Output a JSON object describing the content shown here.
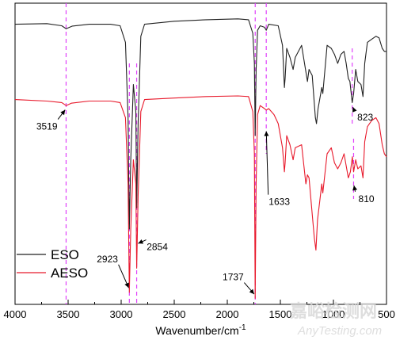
{
  "chart_data": {
    "type": "line",
    "xlabel": "Wavenumber/cm",
    "xlabel_sup": "-1",
    "ylabel": "",
    "xlim": [
      4000,
      500
    ],
    "x_reversed": true,
    "x_ticks": [
      4000,
      3500,
      3000,
      2500,
      2000,
      1500,
      1000,
      500
    ],
    "ylim": [
      0,
      100
    ],
    "grid": false,
    "legend_position": "bottom-left",
    "series": [
      {
        "name": "ESO",
        "color": "#222222",
        "points": [
          [
            4000,
            93
          ],
          [
            3700,
            93.2
          ],
          [
            3560,
            92.5
          ],
          [
            3519,
            91.5
          ],
          [
            3460,
            92.4
          ],
          [
            3300,
            93
          ],
          [
            3100,
            93
          ],
          [
            3010,
            92.5
          ],
          [
            2960,
            87
          ],
          [
            2935,
            62
          ],
          [
            2923,
            25
          ],
          [
            2910,
            48
          ],
          [
            2885,
            73
          ],
          [
            2862,
            64
          ],
          [
            2854,
            32
          ],
          [
            2840,
            60
          ],
          [
            2815,
            89
          ],
          [
            2780,
            93
          ],
          [
            2500,
            94
          ],
          [
            2200,
            94.5
          ],
          [
            1900,
            94.8
          ],
          [
            1800,
            94.5
          ],
          [
            1760,
            90
          ],
          [
            1745,
            80
          ],
          [
            1737,
            56
          ],
          [
            1728,
            78
          ],
          [
            1715,
            91
          ],
          [
            1690,
            92.5
          ],
          [
            1650,
            92
          ],
          [
            1633,
            91
          ],
          [
            1610,
            93
          ],
          [
            1520,
            92.5
          ],
          [
            1480,
            86
          ],
          [
            1462,
            72
          ],
          [
            1455,
            75
          ],
          [
            1440,
            85
          ],
          [
            1410,
            82
          ],
          [
            1380,
            78
          ],
          [
            1360,
            82
          ],
          [
            1300,
            86
          ],
          [
            1245,
            74
          ],
          [
            1230,
            78
          ],
          [
            1200,
            76
          ],
          [
            1170,
            62
          ],
          [
            1160,
            60
          ],
          [
            1145,
            65
          ],
          [
            1110,
            72
          ],
          [
            1100,
            70
          ],
          [
            1060,
            86
          ],
          [
            1020,
            85
          ],
          [
            990,
            83
          ],
          [
            960,
            80
          ],
          [
            930,
            83
          ],
          [
            900,
            84
          ],
          [
            880,
            80
          ],
          [
            860,
            75
          ],
          [
            845,
            74
          ],
          [
            823,
            67
          ],
          [
            810,
            70
          ],
          [
            790,
            78
          ],
          [
            770,
            74
          ],
          [
            740,
            73
          ],
          [
            722,
            69
          ],
          [
            705,
            80
          ],
          [
            680,
            87
          ],
          [
            640,
            88
          ],
          [
            600,
            89
          ],
          [
            570,
            88.5
          ],
          [
            540,
            85
          ],
          [
            520,
            84
          ],
          [
            500,
            84
          ]
        ]
      },
      {
        "name": "AESO",
        "color": "#e8192b",
        "points": [
          [
            4000,
            68
          ],
          [
            3700,
            67.5
          ],
          [
            3560,
            67
          ],
          [
            3519,
            66
          ],
          [
            3470,
            66.8
          ],
          [
            3300,
            67.5
          ],
          [
            3100,
            67.5
          ],
          [
            3010,
            67
          ],
          [
            2960,
            62
          ],
          [
            2935,
            40
          ],
          [
            2923,
            4
          ],
          [
            2910,
            25
          ],
          [
            2885,
            48
          ],
          [
            2862,
            40
          ],
          [
            2854,
            12
          ],
          [
            2840,
            36
          ],
          [
            2815,
            64
          ],
          [
            2780,
            68
          ],
          [
            2500,
            68.5
          ],
          [
            2200,
            69
          ],
          [
            1900,
            69.2
          ],
          [
            1800,
            69
          ],
          [
            1760,
            64
          ],
          [
            1745,
            50
          ],
          [
            1737,
            2
          ],
          [
            1728,
            40
          ],
          [
            1715,
            63
          ],
          [
            1690,
            66
          ],
          [
            1650,
            65
          ],
          [
            1633,
            64.5
          ],
          [
            1610,
            65
          ],
          [
            1560,
            63
          ],
          [
            1520,
            60
          ],
          [
            1480,
            52
          ],
          [
            1462,
            44
          ],
          [
            1455,
            47
          ],
          [
            1440,
            56
          ],
          [
            1410,
            53
          ],
          [
            1380,
            48
          ],
          [
            1360,
            52
          ],
          [
            1300,
            53
          ],
          [
            1260,
            40
          ],
          [
            1245,
            43
          ],
          [
            1230,
            42
          ],
          [
            1200,
            30
          ],
          [
            1180,
            22
          ],
          [
            1165,
            18
          ],
          [
            1150,
            28
          ],
          [
            1110,
            40
          ],
          [
            1100,
            37
          ],
          [
            1060,
            50
          ],
          [
            1020,
            52
          ],
          [
            990,
            47
          ],
          [
            960,
            45
          ],
          [
            930,
            47
          ],
          [
            900,
            50
          ],
          [
            880,
            46
          ],
          [
            860,
            42
          ],
          [
            840,
            44
          ],
          [
            822,
            49
          ],
          [
            810,
            44
          ],
          [
            790,
            48
          ],
          [
            770,
            45
          ],
          [
            740,
            46
          ],
          [
            722,
            42
          ],
          [
            705,
            54
          ],
          [
            680,
            59
          ],
          [
            640,
            61
          ],
          [
            600,
            62
          ],
          [
            570,
            60
          ],
          [
            540,
            53
          ],
          [
            520,
            50
          ],
          [
            500,
            49
          ]
        ]
      }
    ],
    "reference_lines": [
      {
        "x": 3519,
        "y_from": 0,
        "y_to": 100,
        "color": "#e040fb"
      },
      {
        "x": 2923,
        "y_from": 0,
        "y_to": 80,
        "color": "#e040fb"
      },
      {
        "x": 2854,
        "y_from": 0,
        "y_to": 80,
        "color": "#e040fb"
      },
      {
        "x": 1737,
        "y_from": 0,
        "y_to": 100,
        "color": "#e040fb"
      },
      {
        "x": 1633,
        "y_from": 50,
        "y_to": 100,
        "color": "#e040fb"
      },
      {
        "x": 823,
        "y_from": 60,
        "y_to": 85,
        "color": "#e040fb"
      },
      {
        "x": 810,
        "y_from": 35,
        "y_to": 55,
        "color": "#e040fb"
      }
    ],
    "annotations": [
      {
        "label": "3519",
        "peak_x": 3519,
        "peak_y": 65,
        "text_x": 3700,
        "text_y": 58
      },
      {
        "label": "2923",
        "peak_x": 2923,
        "peak_y": 5,
        "text_x": 3130,
        "text_y": 14
      },
      {
        "label": "2854",
        "peak_x": 2854,
        "peak_y": 20,
        "text_x": 2660,
        "text_y": 18
      },
      {
        "label": "1737",
        "peak_x": 1737,
        "peak_y": 3,
        "text_x": 1945,
        "text_y": 8
      },
      {
        "label": "1633",
        "peak_x": 1633,
        "peak_y": 58,
        "text_x": 1510,
        "text_y": 33
      },
      {
        "label": "823",
        "peak_x": 823,
        "peak_y": 66,
        "text_x": 700,
        "text_y": 61
      },
      {
        "label": "810",
        "peak_x": 810,
        "peak_y": 40,
        "text_x": 690,
        "text_y": 34
      }
    ]
  },
  "watermark": {
    "text_cn": "嘉峪检测网",
    "text_url": "AnyTesting.com"
  }
}
